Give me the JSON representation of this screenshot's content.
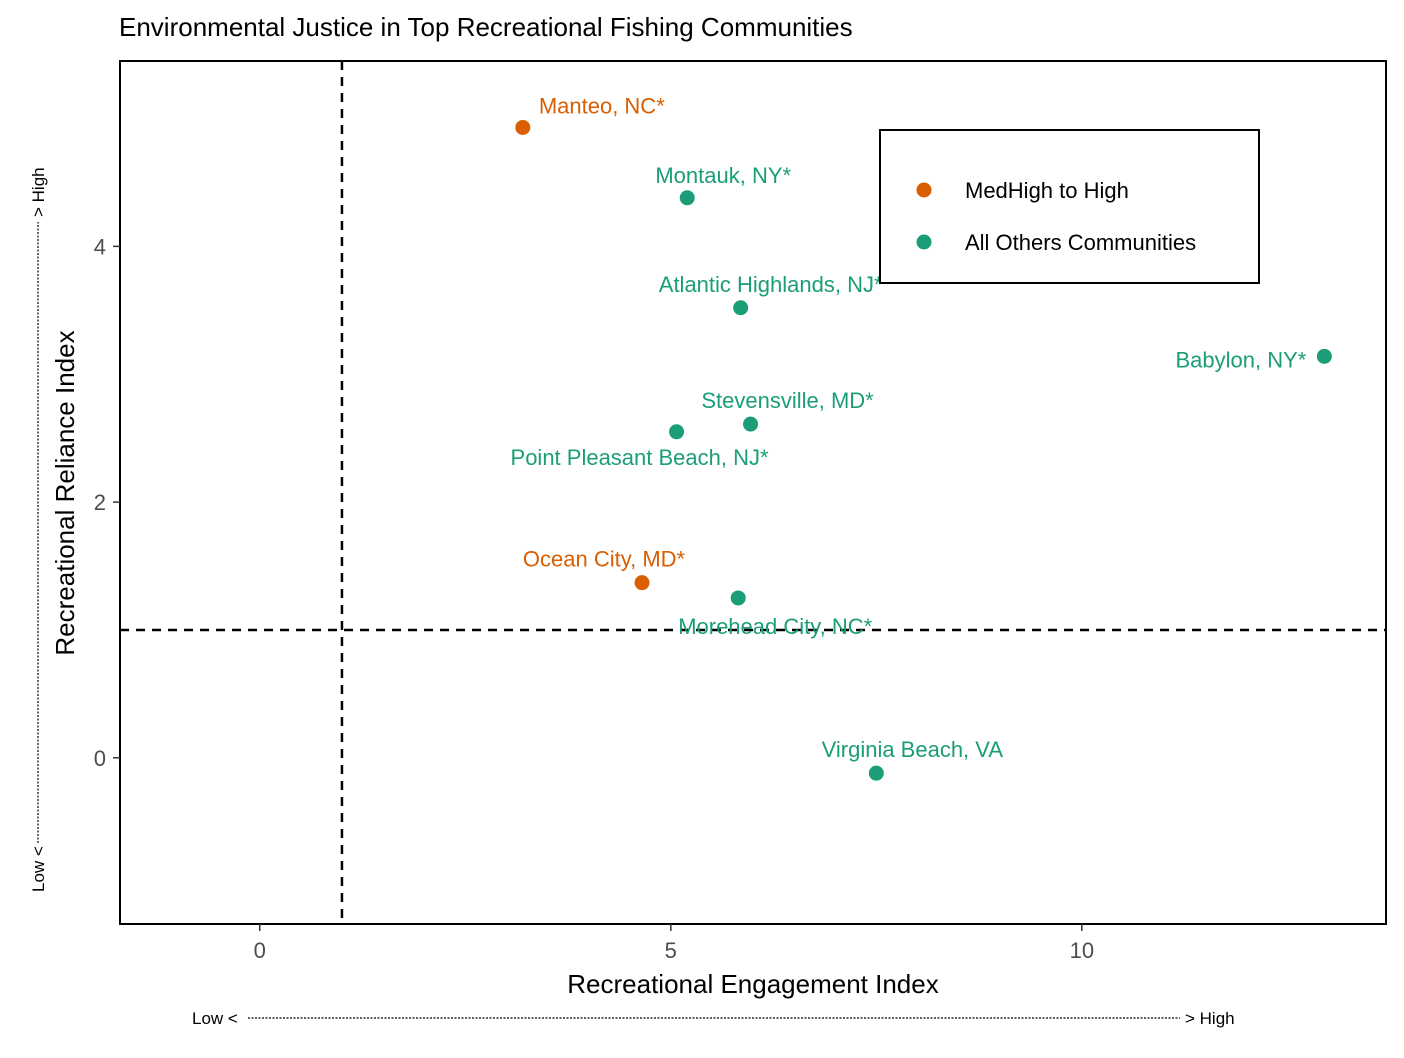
{
  "chart_data": {
    "type": "scatter",
    "title": "Environmental Justice in Top Recreational Fishing Communities",
    "xlabel": "Recreational Engagement Index",
    "ylabel": "Recreational Reliance Index",
    "x_arrow_low": "Low <",
    "x_arrow_high": "> High",
    "y_arrow_low": "Low <",
    "y_arrow_high": "> High",
    "xlim": [
      -1.7,
      13.7
    ],
    "ylim": [
      -1.3,
      5.45
    ],
    "x_ticks": [
      0,
      5,
      10
    ],
    "x_tick_labels": [
      "0",
      "5",
      "10"
    ],
    "y_ticks": [
      0,
      2,
      4
    ],
    "y_tick_labels": [
      "0",
      "2",
      "4"
    ],
    "reference_lines": {
      "x": 1,
      "y": 1
    },
    "grid": false,
    "legend": {
      "placement": "top-right",
      "entries": [
        {
          "name": "MedHigh to High",
          "color": "#d95f02"
        },
        {
          "name": "All Others Communities",
          "color": "#1b9e77"
        }
      ]
    },
    "series": [
      {
        "name": "MedHigh to High",
        "color": "#d95f02",
        "points": [
          {
            "label": "Manteo, NC*",
            "x": 3.2,
            "y": 4.93
          },
          {
            "label": "Ocean City, MD*",
            "x": 4.65,
            "y": 1.37
          }
        ]
      },
      {
        "name": "All Others Communities",
        "color": "#1b9e77",
        "points": [
          {
            "label": "Montauk, NY*",
            "x": 5.2,
            "y": 4.38
          },
          {
            "label": "Atlantic Highlands, NJ*",
            "x": 5.85,
            "y": 3.52
          },
          {
            "label": "Babylon, NY*",
            "x": 12.95,
            "y": 3.14
          },
          {
            "label": "Stevensville, MD*",
            "x": 5.97,
            "y": 2.61
          },
          {
            "label": "Point Pleasant Beach, NJ*",
            "x": 5.07,
            "y": 2.55
          },
          {
            "label": "Morehead City, NC*",
            "x": 5.82,
            "y": 1.25
          },
          {
            "label": "Virginia Beach, VA",
            "x": 7.5,
            "y": -0.12
          }
        ]
      }
    ]
  }
}
